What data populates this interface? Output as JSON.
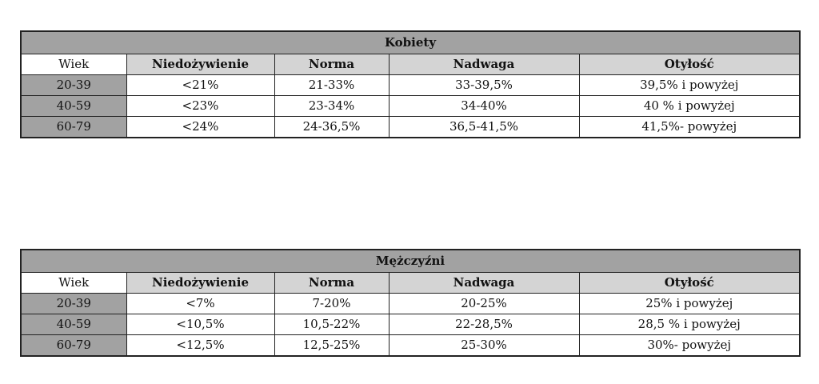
{
  "tables": [
    {
      "title": "Kobiety",
      "headers": [
        "Wiek",
        "Niedożywienie",
        "Norma",
        "Nadwaga",
        "Otyłość"
      ],
      "rows": [
        [
          "20-39",
          "<21%",
          "21-33%",
          "33-39,5%",
          "39,5% i powyżej"
        ],
        [
          "40-59",
          "<23%",
          "23-34%",
          "34-40%",
          "40 % i powyżej"
        ],
        [
          "60-79",
          "<24%",
          "24-36,5%",
          "36,5-41,5%",
          "41,5%- powyżej"
        ]
      ]
    },
    {
      "title": "Mężczyźni",
      "headers": [
        "Wiek",
        "Niedożywienie",
        "Norma",
        "Nadwaga",
        "Otyłość"
      ],
      "rows": [
        [
          "20-39",
          "<7%",
          "7-20%",
          "20-25%",
          "25% i powyżej"
        ],
        [
          "40-59",
          "<10,5%",
          "10,5-22%",
          "22-28,5%",
          "28,5 % i powyżej"
        ],
        [
          "60-79",
          "<12,5%",
          "12,5-25%",
          "25-30%",
          "30%- powyżej"
        ]
      ]
    }
  ]
}
